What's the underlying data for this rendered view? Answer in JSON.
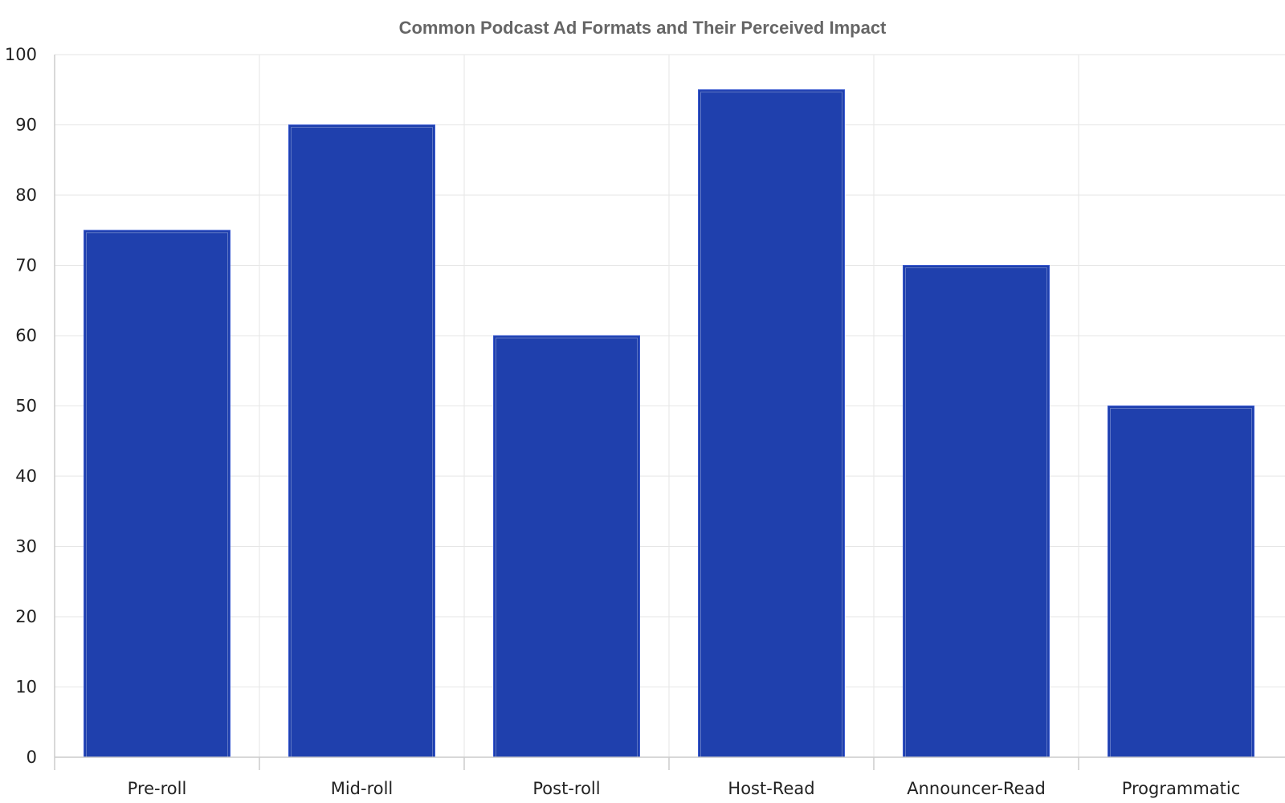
{
  "chart_data": {
    "type": "bar",
    "title": "Common Podcast Ad Formats and Their Perceived Impact",
    "xlabel": "",
    "ylabel": "",
    "categories": [
      "Pre-roll",
      "Mid-roll",
      "Post-roll",
      "Host-Read",
      "Announcer-Read",
      "Programmatic"
    ],
    "values": [
      75,
      90,
      60,
      95,
      70,
      50
    ],
    "ylim": [
      0,
      100
    ],
    "yticks": [
      0,
      10,
      20,
      30,
      40,
      50,
      60,
      70,
      80,
      90,
      100
    ],
    "grid": true,
    "legend": "none",
    "colors": {
      "bar": "#1f40ad",
      "bar_edge": "#3a5ad0"
    }
  }
}
